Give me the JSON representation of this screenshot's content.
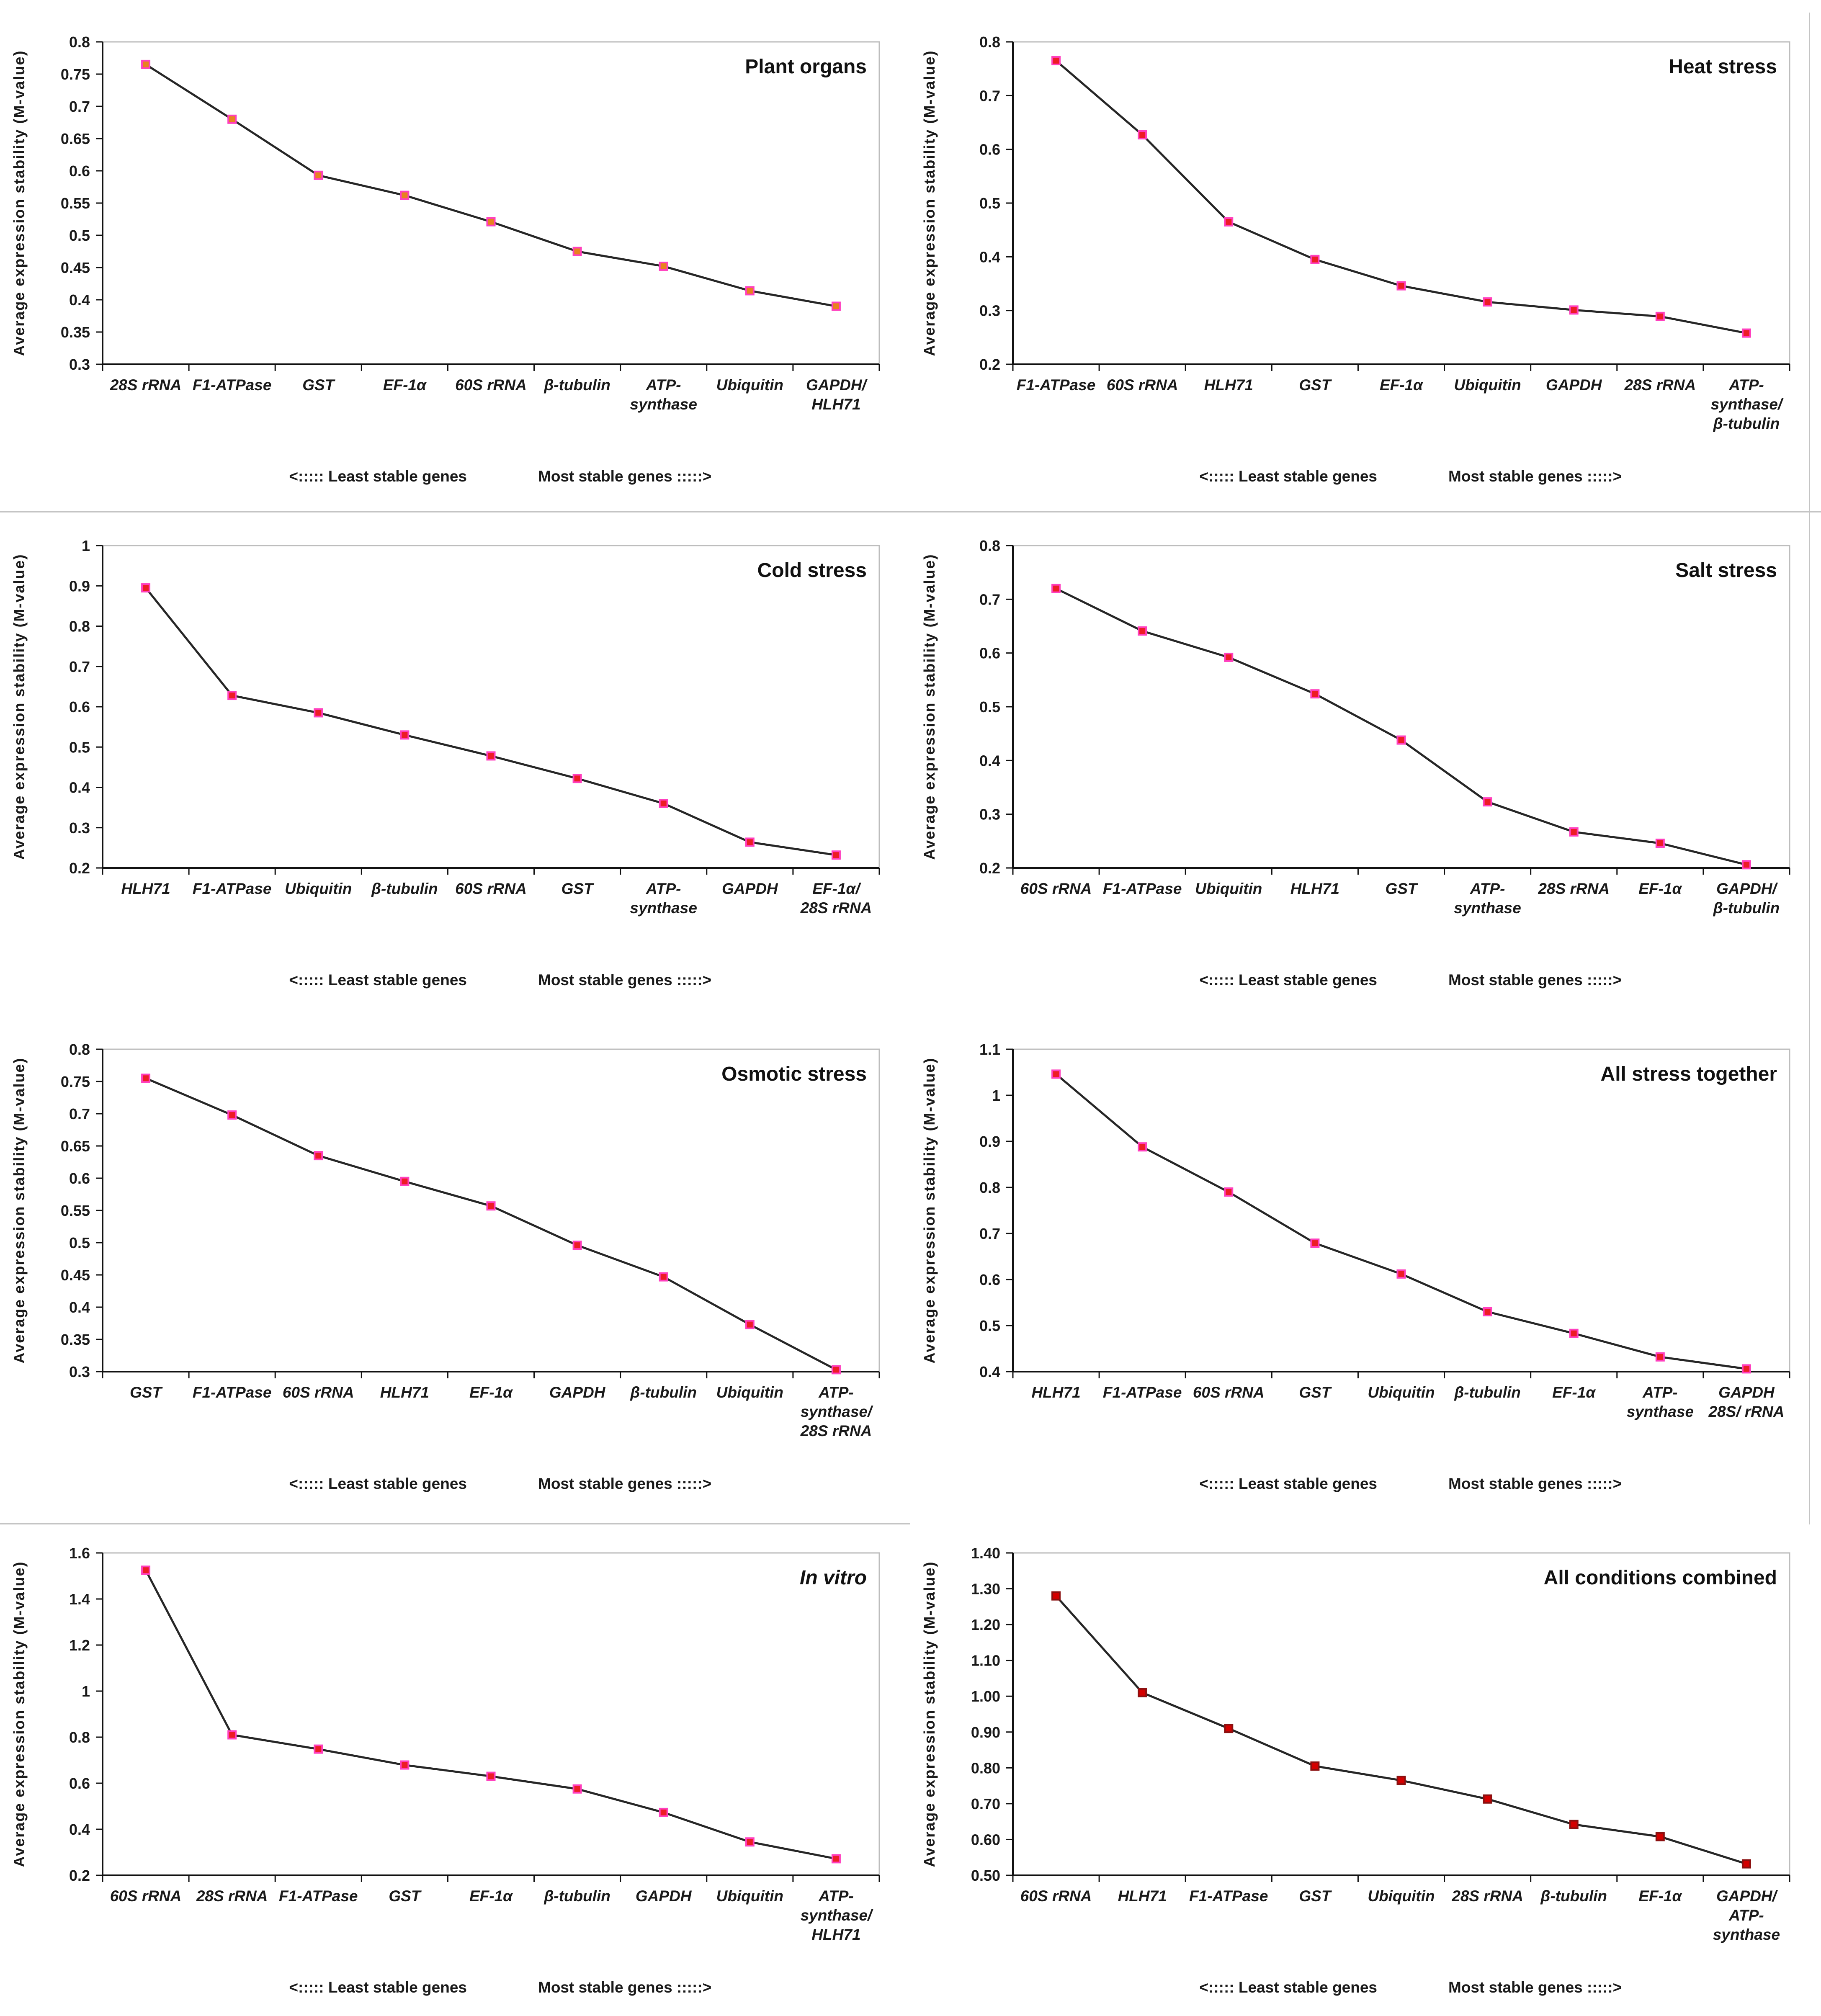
{
  "figure": {
    "y_axis_title": "Average expression stability (M-value)",
    "footer_left": "<:::::  Least stable genes",
    "footer_right": "Most stable genes :::::>",
    "line_color": "#262626",
    "axis_color": "#111111",
    "plot_border_color": "#bdbdbd",
    "background": "#ffffff"
  },
  "chart_data": [
    {
      "type": "line",
      "title": "Plant organs",
      "title_italic": false,
      "ylabel": "Average expression stability (M-value)",
      "ylim": [
        0.3,
        0.8
      ],
      "ytick_step": 0.05,
      "ytick_labels": [
        "0.3",
        "0.35",
        "0.4",
        "0.45",
        "0.5",
        "0.55",
        "0.6",
        "0.65",
        "0.7",
        "0.75",
        "0.8"
      ],
      "categories": [
        "28S rRNA",
        "F1-ATPase",
        "GST",
        "EF-1α",
        "60S rRNA",
        "β-tubulin",
        "ATP-\nsynthase",
        "Ubiquitin",
        "GAPDH/\nHLH71"
      ],
      "values": [
        0.765,
        0.68,
        0.593,
        0.562,
        0.521,
        0.475,
        0.452,
        0.414,
        0.39
      ],
      "marker_fill": "#E8821E",
      "marker_stroke": "#FF3FBE"
    },
    {
      "type": "line",
      "title": "Heat stress",
      "title_italic": false,
      "ylabel": "Average expression stability (M-value)",
      "ylim": [
        0.2,
        0.8
      ],
      "ytick_step": 0.1,
      "ytick_labels": [
        "0.2",
        "0.3",
        "0.4",
        "0.5",
        "0.6",
        "0.7",
        "0.8"
      ],
      "categories": [
        "F1-ATPase",
        "60S rRNA",
        "HLH71",
        "GST",
        "EF-1α",
        "Ubiquitin",
        "GAPDH",
        "28S rRNA",
        "ATP-\nsynthase/\nβ-tubulin"
      ],
      "values": [
        0.765,
        0.627,
        0.465,
        0.395,
        0.346,
        0.316,
        0.301,
        0.289,
        0.258
      ],
      "marker_fill": "#ED1C24",
      "marker_stroke": "#FF3FBE"
    },
    {
      "type": "line",
      "title": "Cold stress",
      "title_italic": false,
      "ylabel": "Average expression stability (M-value)",
      "ylim": [
        0.2,
        1.0
      ],
      "ytick_step": 0.1,
      "ytick_labels": [
        "0.2",
        "0.3",
        "0.4",
        "0.5",
        "0.6",
        "0.7",
        "0.8",
        "0.9",
        "1"
      ],
      "categories": [
        "HLH71",
        "F1-ATPase",
        "Ubiquitin",
        "β-tubulin",
        "60S rRNA",
        "GST",
        "ATP-\nsynthase",
        "GAPDH",
        "EF-1α/\n28S rRNA"
      ],
      "values": [
        0.895,
        0.628,
        0.585,
        0.53,
        0.478,
        0.422,
        0.36,
        0.264,
        0.232
      ],
      "marker_fill": "#ED1C24",
      "marker_stroke": "#FF3FBE"
    },
    {
      "type": "line",
      "title": "Salt stress",
      "title_italic": false,
      "ylabel": "Average expression stability (M-value)",
      "ylim": [
        0.2,
        0.8
      ],
      "ytick_step": 0.1,
      "ytick_labels": [
        "0.2",
        "0.3",
        "0.4",
        "0.5",
        "0.6",
        "0.7",
        "0.8"
      ],
      "categories": [
        "60S rRNA",
        "F1-ATPase",
        "Ubiquitin",
        "HLH71",
        "GST",
        "ATP-\nsynthase",
        "28S rRNA",
        "EF-1α",
        "GAPDH/\nβ-tubulin"
      ],
      "values": [
        0.72,
        0.641,
        0.592,
        0.524,
        0.438,
        0.323,
        0.267,
        0.246,
        0.206
      ],
      "marker_fill": "#ED1C24",
      "marker_stroke": "#FF3FBE"
    },
    {
      "type": "line",
      "title": "Osmotic stress",
      "title_italic": false,
      "ylabel": "Average expression stability (M-value)",
      "ylim": [
        0.3,
        0.8
      ],
      "ytick_step": 0.05,
      "ytick_labels": [
        "0.3",
        "0.35",
        "0.4",
        "0.45",
        "0.5",
        "0.55",
        "0.6",
        "0.65",
        "0.7",
        "0.75",
        "0.8"
      ],
      "categories": [
        "GST",
        "F1-ATPase",
        "60S rRNA",
        "HLH71",
        "EF-1α",
        "GAPDH",
        "β-tubulin",
        "Ubiquitin",
        "ATP-\nsynthase/\n28S rRNA"
      ],
      "values": [
        0.755,
        0.698,
        0.635,
        0.595,
        0.557,
        0.496,
        0.447,
        0.373,
        0.303
      ],
      "marker_fill": "#ED1C24",
      "marker_stroke": "#FF3FBE"
    },
    {
      "type": "line",
      "title": "All stress together",
      "title_italic": false,
      "ylabel": "Average expression stability (M-value)",
      "ylim": [
        0.4,
        1.1
      ],
      "ytick_step": 0.1,
      "ytick_labels": [
        "0.4",
        "0.5",
        "0.6",
        "0.7",
        "0.8",
        "0.9",
        "1",
        "1.1"
      ],
      "categories": [
        "HLH71",
        "F1-ATPase",
        "60S rRNA",
        "GST",
        "Ubiquitin",
        "β-tubulin",
        "EF-1α",
        "ATP-\nsynthase",
        "GAPDH\n28S/ rRNA"
      ],
      "values": [
        1.046,
        0.888,
        0.79,
        0.679,
        0.612,
        0.53,
        0.483,
        0.432,
        0.406
      ],
      "marker_fill": "#ED1C24",
      "marker_stroke": "#FF3FBE"
    },
    {
      "type": "line",
      "title": "In vitro",
      "title_italic": true,
      "ylabel": "Average expression stability (M-value)",
      "ylim": [
        0.2,
        1.6
      ],
      "ytick_step": 0.2,
      "ytick_labels": [
        "0.2",
        "0.4",
        "0.6",
        "0.8",
        "1",
        "1.2",
        "1.4",
        "1.6"
      ],
      "categories": [
        "60S rRNA",
        "28S rRNA",
        "F1-ATPase",
        "GST",
        "EF-1α",
        "β-tubulin",
        "GAPDH",
        "Ubiquitin",
        "ATP-\nsynthase/\nHLH71"
      ],
      "values": [
        1.525,
        0.81,
        0.748,
        0.679,
        0.63,
        0.575,
        0.473,
        0.345,
        0.272
      ],
      "marker_fill": "#ED1C24",
      "marker_stroke": "#FF3FBE"
    },
    {
      "type": "line",
      "title": "All conditions combined",
      "title_italic": false,
      "ylabel": "Average expression stability (M-value)",
      "ylim": [
        0.5,
        1.4
      ],
      "ytick_step": 0.1,
      "ytick_labels": [
        "0.50",
        "0.60",
        "0.70",
        "0.80",
        "0.90",
        "1.00",
        "1.10",
        "1.20",
        "1.30",
        "1.40"
      ],
      "categories": [
        "60S rRNA",
        "HLH71",
        "F1-ATPase",
        "GST",
        "Ubiquitin",
        "28S rRNA",
        "β-tubulin",
        "EF-1α",
        "GAPDH/\nATP-\nsynthase"
      ],
      "values": [
        1.28,
        1.01,
        0.91,
        0.805,
        0.765,
        0.713,
        0.642,
        0.608,
        0.532
      ],
      "marker_fill": "#D40000",
      "marker_stroke": "#8B1010"
    }
  ]
}
